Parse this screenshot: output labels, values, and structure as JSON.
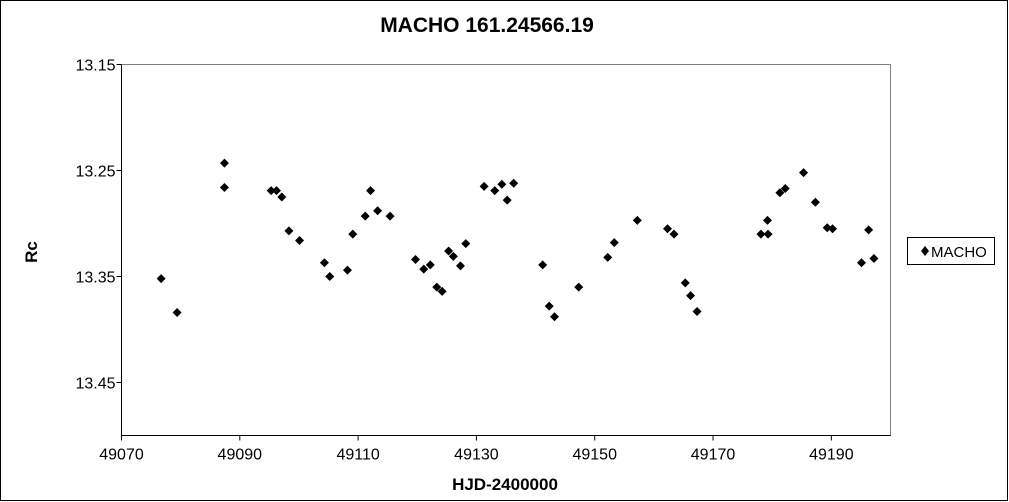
{
  "chart_data": {
    "type": "scatter",
    "title": "MACHO 161.24566.19",
    "xlabel": "HJD-2400000",
    "ylabel": "Rc",
    "xlim": [
      49070,
      49200
    ],
    "ylim": [
      13.15,
      13.5
    ],
    "y_reversed": true,
    "x_ticks": [
      49070,
      49090,
      49110,
      49130,
      49150,
      49170,
      49190
    ],
    "x_tick_labels": [
      "49070",
      "49090",
      "49110",
      "49130",
      "49150",
      "49170",
      "49190"
    ],
    "y_ticks": [
      13.15,
      13.25,
      13.35,
      13.45
    ],
    "y_tick_labels": [
      "13.15",
      "13.25",
      "13.35",
      "13.45"
    ],
    "grid": false,
    "legend_position": "right",
    "marker": "diamond",
    "marker_color": "#000000",
    "series": [
      {
        "name": "MACHO",
        "points": [
          [
            49076.7,
            13.352
          ],
          [
            49079.4,
            13.384
          ],
          [
            49087.4,
            13.243
          ],
          [
            49087.4,
            13.266
          ],
          [
            49095.3,
            13.269
          ],
          [
            49096.2,
            13.269
          ],
          [
            49097.1,
            13.275
          ],
          [
            49098.3,
            13.307
          ],
          [
            49100.1,
            13.316
          ],
          [
            49104.3,
            13.337
          ],
          [
            49105.2,
            13.35
          ],
          [
            49108.2,
            13.344
          ],
          [
            49109.1,
            13.31
          ],
          [
            49111.2,
            13.293
          ],
          [
            49112.1,
            13.269
          ],
          [
            49113.3,
            13.288
          ],
          [
            49115.4,
            13.293
          ],
          [
            49119.7,
            13.334
          ],
          [
            49121.1,
            13.343
          ],
          [
            49122.2,
            13.339
          ],
          [
            49123.3,
            13.36
          ],
          [
            49124.2,
            13.364
          ],
          [
            49125.3,
            13.326
          ],
          [
            49126.1,
            13.331
          ],
          [
            49127.3,
            13.34
          ],
          [
            49128.2,
            13.319
          ],
          [
            49131.3,
            13.265
          ],
          [
            49133.1,
            13.269
          ],
          [
            49134.3,
            13.263
          ],
          [
            49135.2,
            13.278
          ],
          [
            49136.3,
            13.262
          ],
          [
            49141.2,
            13.339
          ],
          [
            49142.3,
            13.378
          ],
          [
            49143.2,
            13.388
          ],
          [
            49147.3,
            13.36
          ],
          [
            49152.2,
            13.332
          ],
          [
            49153.3,
            13.318
          ],
          [
            49157.2,
            13.297
          ],
          [
            49162.3,
            13.305
          ],
          [
            49163.4,
            13.31
          ],
          [
            49165.3,
            13.356
          ],
          [
            49166.2,
            13.368
          ],
          [
            49167.3,
            13.383
          ],
          [
            49178.1,
            13.31
          ],
          [
            49179.2,
            13.297
          ],
          [
            49179.3,
            13.31
          ],
          [
            49181.3,
            13.271
          ],
          [
            49182.2,
            13.267
          ],
          [
            49185.3,
            13.252
          ],
          [
            49187.3,
            13.28
          ],
          [
            49189.3,
            13.304
          ],
          [
            49190.2,
            13.305
          ],
          [
            49195.1,
            13.337
          ],
          [
            49196.3,
            13.306
          ],
          [
            49197.2,
            13.333
          ]
        ]
      }
    ]
  }
}
